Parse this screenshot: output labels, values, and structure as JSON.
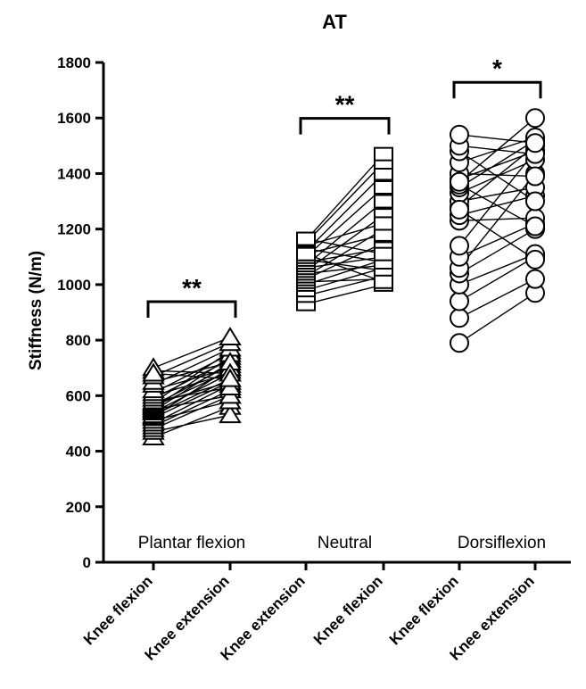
{
  "chart_data": {
    "type": "scatter",
    "title": "AT",
    "ylabel": "Stiffness (N/m)",
    "xlabel": "",
    "ylim": [
      0,
      1800
    ],
    "yticks": [
      0,
      200,
      400,
      600,
      800,
      1000,
      1200,
      1400,
      1600,
      1800
    ],
    "categories": [
      "Knee flexion",
      "Knee extension",
      "Knee extension",
      "Knee flexion",
      "Knee flexion",
      "Knee extension"
    ],
    "grid": false,
    "groups": [
      {
        "label": "Plantar flexion",
        "conditions": [
          "Knee flexion",
          "Knee extension"
        ],
        "marker": "triangle",
        "significance": "**",
        "pairs": [
          [
            450,
            560
          ],
          [
            470,
            530
          ],
          [
            480,
            600
          ],
          [
            490,
            620
          ],
          [
            500,
            640
          ],
          [
            510,
            580
          ],
          [
            520,
            650
          ],
          [
            525,
            700
          ],
          [
            530,
            660
          ],
          [
            540,
            680
          ],
          [
            545,
            720
          ],
          [
            550,
            600
          ],
          [
            555,
            740
          ],
          [
            560,
            690
          ],
          [
            565,
            710
          ],
          [
            570,
            650
          ],
          [
            575,
            760
          ],
          [
            580,
            630
          ],
          [
            590,
            730
          ],
          [
            600,
            680
          ],
          [
            610,
            750
          ],
          [
            620,
            700
          ],
          [
            640,
            770
          ],
          [
            650,
            720
          ],
          [
            670,
            790
          ],
          [
            690,
            680
          ],
          [
            700,
            810
          ],
          [
            680,
            660
          ]
        ]
      },
      {
        "label": "Neutral",
        "conditions": [
          "Knee extension",
          "Knee flexion"
        ],
        "marker": "square",
        "significance": "**",
        "pairs": [
          [
            930,
            1000
          ],
          [
            960,
            1030
          ],
          [
            980,
            1060
          ],
          [
            1000,
            1090
          ],
          [
            1010,
            1020
          ],
          [
            1020,
            1150
          ],
          [
            1030,
            1200
          ],
          [
            1040,
            1070
          ],
          [
            1050,
            1250
          ],
          [
            1060,
            1100
          ],
          [
            1070,
            1300
          ],
          [
            1080,
            1130
          ],
          [
            1090,
            1050
          ],
          [
            1100,
            1350
          ],
          [
            1110,
            1180
          ],
          [
            1120,
            1400
          ],
          [
            1130,
            1080
          ],
          [
            1140,
            1220
          ],
          [
            1150,
            1440
          ],
          [
            1160,
            1470
          ],
          [
            1165,
            1110
          ],
          [
            1110,
            1010
          ]
        ]
      },
      {
        "label": "Dorsiflexion",
        "conditions": [
          "Knee flexion",
          "Knee extension"
        ],
        "marker": "circle",
        "significance": "*",
        "pairs": [
          [
            790,
            970
          ],
          [
            880,
            1020
          ],
          [
            940,
            1100
          ],
          [
            1000,
            1110
          ],
          [
            1040,
            1200
          ],
          [
            1060,
            1400
          ],
          [
            1100,
            1220
          ],
          [
            1140,
            1480
          ],
          [
            1230,
            1240
          ],
          [
            1250,
            1320
          ],
          [
            1280,
            1500
          ],
          [
            1300,
            1350
          ],
          [
            1330,
            1450
          ],
          [
            1350,
            1520
          ],
          [
            1360,
            1210
          ],
          [
            1380,
            1480
          ],
          [
            1400,
            1390
          ],
          [
            1440,
            1530
          ],
          [
            1480,
            1300
          ],
          [
            1500,
            1470
          ],
          [
            1540,
            1510
          ],
          [
            1370,
            1600
          ],
          [
            1270,
            1090
          ]
        ]
      }
    ]
  }
}
